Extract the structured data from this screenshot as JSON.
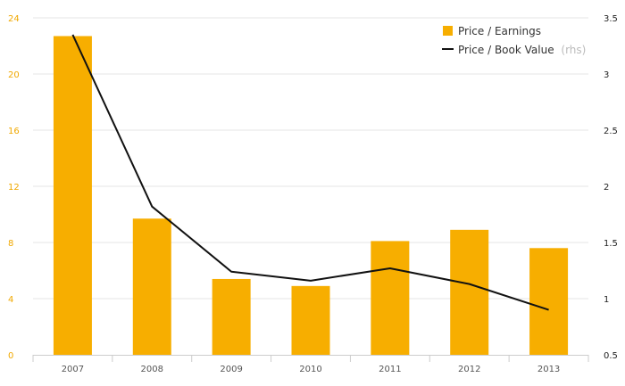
{
  "chart_data": {
    "type": "bar",
    "categories": [
      "2007",
      "2008",
      "2009",
      "2010",
      "2011",
      "2012",
      "2013"
    ],
    "series": [
      {
        "name": "Price / Earnings",
        "type": "bar",
        "axis": "left",
        "color": "#f7ae00",
        "values": [
          22.7,
          9.7,
          5.4,
          4.9,
          8.1,
          8.9,
          7.6
        ]
      },
      {
        "name": "Price / Book Value",
        "type": "line",
        "axis": "right",
        "color": "#111111",
        "values": [
          3.35,
          1.82,
          1.24,
          1.16,
          1.27,
          1.13,
          0.9
        ]
      }
    ],
    "y_left": {
      "min": 0,
      "max": 24,
      "ticks": [
        "0",
        "4",
        "8",
        "12",
        "16",
        "20",
        "24"
      ]
    },
    "y_right": {
      "min": 0.5,
      "max": 3.5,
      "ticks": [
        "0.5",
        "1",
        "1.5",
        "2",
        "2.5",
        "3",
        "3.5"
      ]
    },
    "legend": {
      "position": "top-right",
      "items": [
        {
          "label": "Price / Earnings",
          "note": ""
        },
        {
          "label": "Price / Book Value",
          "note": "(rhs)"
        }
      ]
    },
    "grid": true
  }
}
